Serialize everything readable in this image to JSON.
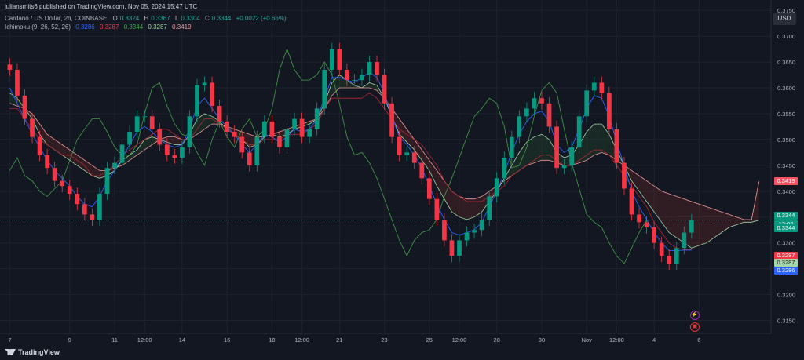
{
  "header": {
    "published": "juliansmits6 published on TradingView.com, Nov 05, 2024 15:47 UTC",
    "symbol": "Cardano / US Dollar, 2h, COINBASE",
    "ohlc": {
      "o_label": "O",
      "o": "0.3324",
      "h_label": "H",
      "h": "0.3367",
      "l_label": "L",
      "l": "0.3304",
      "c_label": "C",
      "c": "0.3344",
      "change": "+0.0022 (+0.66%)"
    },
    "ichimoku": {
      "name": "Ichimoku (9, 26, 52, 26)",
      "v1": "0.3286",
      "v2": "0.3287",
      "v3": "0.3344",
      "v4": "0.3287",
      "v5": "0.3419"
    }
  },
  "currency_button": "USD",
  "branding": "TradingView",
  "price_tags": [
    {
      "text": "0.3419",
      "color": "#f7525f",
      "price": 0.3419
    },
    {
      "text": "0.3344",
      "color": "#089981",
      "price": 0.3352
    },
    {
      "text": "12:03",
      "color": "#089981",
      "price": 0.33365
    },
    {
      "text": "0.3344",
      "color": "#089981",
      "price": 0.3328
    },
    {
      "text": "0.3287",
      "color": "#f23645",
      "price": 0.3276
    },
    {
      "text": "0.3287",
      "color": "#a5d6a7",
      "price": 0.3262
    },
    {
      "text": "0.3286",
      "color": "#2962ff",
      "price": 0.3247
    }
  ],
  "events": [
    {
      "name": "lightning-event-icon",
      "glyph": "⚡",
      "color": "#9c27b0",
      "x_index": 91.3,
      "price": 0.3162
    },
    {
      "name": "calendar-event-icon",
      "glyph": "▣",
      "color": "#e53935",
      "x_index": 91.3,
      "price": 0.3139
    }
  ],
  "colors": {
    "bg": "#131722",
    "up": "#089981",
    "down": "#f23645",
    "tenkan": "#2962ff",
    "kijun": "#b22833",
    "lagging": "#43a047",
    "spanA": "#a5d6a7",
    "spanB": "#ef9a9a",
    "grid": "#1e222d"
  },
  "chart_data": {
    "type": "candlestick",
    "symbol": "Cardano / US Dollar",
    "interval": "2h",
    "exchange": "COINBASE",
    "y_axis": {
      "ticks": [
        0.315,
        0.32,
        0.325,
        0.33,
        0.335,
        0.34,
        0.345,
        0.35,
        0.355,
        0.36,
        0.365,
        0.37,
        0.375
      ],
      "range": [
        0.3125,
        0.377
      ]
    },
    "x_ticks": [
      {
        "label": "7",
        "i": 0
      },
      {
        "label": "9",
        "i": 8
      },
      {
        "label": "11",
        "i": 14
      },
      {
        "label": "12:00",
        "i": 18
      },
      {
        "label": "14",
        "i": 23
      },
      {
        "label": "16",
        "i": 29
      },
      {
        "label": "18",
        "i": 35
      },
      {
        "label": "12:00",
        "i": 39
      },
      {
        "label": "21",
        "i": 44
      },
      {
        "label": "23",
        "i": 50
      },
      {
        "label": "25",
        "i": 56
      },
      {
        "label": "12:00",
        "i": 60
      },
      {
        "label": "28",
        "i": 65
      },
      {
        "label": "30",
        "i": 71
      },
      {
        "label": "Nov",
        "i": 77
      },
      {
        "label": "12:00",
        "i": 81
      },
      {
        "label": "4",
        "i": 86
      },
      {
        "label": "6",
        "i": 92
      }
    ],
    "x_range": [
      -1.3,
      101.6
    ],
    "last_price": 0.3344,
    "close": [
      0.3635,
      0.3585,
      0.354,
      0.3505,
      0.347,
      0.3445,
      0.342,
      0.341,
      0.3395,
      0.3375,
      0.3355,
      0.3345,
      0.3395,
      0.3445,
      0.3455,
      0.349,
      0.3515,
      0.3545,
      0.3545,
      0.352,
      0.349,
      0.347,
      0.3465,
      0.3485,
      0.3545,
      0.3605,
      0.361,
      0.3565,
      0.3535,
      0.3515,
      0.3505,
      0.3475,
      0.345,
      0.3505,
      0.3535,
      0.3505,
      0.3485,
      0.352,
      0.354,
      0.3505,
      0.352,
      0.356,
      0.3635,
      0.3675,
      0.3635,
      0.3615,
      0.3615,
      0.3625,
      0.365,
      0.3625,
      0.357,
      0.3505,
      0.347,
      0.3475,
      0.3455,
      0.3425,
      0.3385,
      0.3345,
      0.3305,
      0.3275,
      0.3305,
      0.332,
      0.3325,
      0.3345,
      0.339,
      0.3425,
      0.3465,
      0.3505,
      0.3545,
      0.356,
      0.358,
      0.357,
      0.3525,
      0.3445,
      0.345,
      0.3485,
      0.3545,
      0.3595,
      0.361,
      0.359,
      0.352,
      0.3455,
      0.3405,
      0.3355,
      0.334,
      0.333,
      0.33,
      0.3275,
      0.326,
      0.329,
      0.332,
      0.3344
    ],
    "tenkan": [
      0.36,
      0.357,
      0.354,
      0.351,
      0.3485,
      0.346,
      0.344,
      0.3425,
      0.341,
      0.339,
      0.3375,
      0.337,
      0.339,
      0.342,
      0.344,
      0.3465,
      0.349,
      0.3515,
      0.3525,
      0.3515,
      0.35,
      0.349,
      0.3485,
      0.349,
      0.352,
      0.3565,
      0.358,
      0.356,
      0.354,
      0.3525,
      0.351,
      0.349,
      0.3475,
      0.349,
      0.351,
      0.3505,
      0.3495,
      0.3505,
      0.352,
      0.3515,
      0.352,
      0.354,
      0.358,
      0.362,
      0.362,
      0.3615,
      0.361,
      0.362,
      0.363,
      0.362,
      0.359,
      0.3545,
      0.3505,
      0.349,
      0.347,
      0.3445,
      0.341,
      0.3375,
      0.3345,
      0.332,
      0.3315,
      0.332,
      0.3325,
      0.334,
      0.337,
      0.34,
      0.3435,
      0.3475,
      0.351,
      0.3535,
      0.355,
      0.3555,
      0.3535,
      0.349,
      0.3475,
      0.3485,
      0.352,
      0.356,
      0.3585,
      0.358,
      0.3545,
      0.3495,
      0.345,
      0.34,
      0.337,
      0.3345,
      0.332,
      0.33,
      0.3285,
      0.3285,
      0.3286,
      0.3286
    ],
    "kijun": [
      0.356,
      0.356,
      0.354,
      0.352,
      0.35,
      0.349,
      0.348,
      0.347,
      0.347,
      0.346,
      0.345,
      0.343,
      0.343,
      0.344,
      0.345,
      0.347,
      0.348,
      0.349,
      0.35,
      0.351,
      0.352,
      0.352,
      0.351,
      0.35,
      0.35,
      0.352,
      0.354,
      0.354,
      0.353,
      0.352,
      0.351,
      0.35,
      0.349,
      0.349,
      0.35,
      0.35,
      0.35,
      0.351,
      0.351,
      0.351,
      0.352,
      0.353,
      0.356,
      0.358,
      0.358,
      0.358,
      0.358,
      0.358,
      0.359,
      0.358,
      0.356,
      0.354,
      0.352,
      0.351,
      0.35,
      0.349,
      0.347,
      0.345,
      0.342,
      0.34,
      0.339,
      0.338,
      0.338,
      0.338,
      0.339,
      0.34,
      0.341,
      0.343,
      0.344,
      0.345,
      0.346,
      0.347,
      0.347,
      0.346,
      0.345,
      0.345,
      0.346,
      0.347,
      0.348,
      0.348,
      0.347,
      0.345,
      0.343,
      0.341,
      0.339,
      0.337,
      0.334,
      0.332,
      0.33,
      0.329,
      0.3287,
      0.3287
    ],
    "lagging": [
      0.344,
      0.3465,
      0.343,
      0.342,
      0.34,
      0.339,
      0.3405,
      0.342,
      0.346,
      0.35,
      0.352,
      0.354,
      0.354,
      0.3515,
      0.3485,
      0.347,
      0.347,
      0.349,
      0.355,
      0.36,
      0.361,
      0.3565,
      0.353,
      0.351,
      0.3505,
      0.3475,
      0.345,
      0.35,
      0.3535,
      0.3505,
      0.3485,
      0.352,
      0.354,
      0.3505,
      0.352,
      0.356,
      0.3635,
      0.3675,
      0.3635,
      0.3615,
      0.3615,
      0.3625,
      0.365,
      0.3625,
      0.357,
      0.3505,
      0.347,
      0.3475,
      0.3455,
      0.3425,
      0.3385,
      0.3345,
      0.3305,
      0.3275,
      0.3305,
      0.332,
      0.3325,
      0.3345,
      0.339,
      0.3425,
      0.3465,
      0.3505,
      0.3545,
      0.356,
      0.358,
      0.357,
      0.3525,
      0.3445,
      0.345,
      0.3485,
      0.3545,
      0.3595,
      0.361,
      0.359,
      0.352,
      0.3455,
      0.3405,
      0.3355,
      0.334,
      0.333,
      0.33,
      0.3275,
      0.326,
      0.329,
      0.332,
      0.3344
    ],
    "span_a": [
      0.359,
      0.358,
      0.356,
      0.354,
      0.351,
      0.349,
      0.348,
      0.347,
      0.346,
      0.345,
      0.344,
      0.343,
      0.3425,
      0.343,
      0.344,
      0.346,
      0.347,
      0.348,
      0.35,
      0.3505,
      0.35,
      0.3495,
      0.349,
      0.349,
      0.351,
      0.354,
      0.355,
      0.3545,
      0.3535,
      0.352,
      0.351,
      0.35,
      0.3485,
      0.349,
      0.3505,
      0.351,
      0.3505,
      0.351,
      0.352,
      0.3525,
      0.353,
      0.354,
      0.357,
      0.361,
      0.3625,
      0.3615,
      0.3605,
      0.36,
      0.361,
      0.3605,
      0.358,
      0.3545,
      0.351,
      0.3495,
      0.348,
      0.346,
      0.344,
      0.341,
      0.3385,
      0.336,
      0.335,
      0.3345,
      0.335,
      0.336,
      0.338,
      0.34,
      0.3425,
      0.345,
      0.3475,
      0.3495,
      0.3505,
      0.351,
      0.35,
      0.3475,
      0.3465,
      0.347,
      0.349,
      0.3515,
      0.353,
      0.353,
      0.351,
      0.348,
      0.345,
      0.342,
      0.34,
      0.338,
      0.336,
      0.334,
      0.332,
      0.331,
      0.33,
      0.329,
      0.3295,
      0.33,
      0.331,
      0.332,
      0.333,
      0.3335,
      0.334,
      0.334,
      0.3344
    ],
    "span_b": [
      0.357,
      0.3565,
      0.356,
      0.355,
      0.353,
      0.351,
      0.35,
      0.349,
      0.348,
      0.347,
      0.346,
      0.345,
      0.344,
      0.344,
      0.3445,
      0.345,
      0.346,
      0.347,
      0.348,
      0.349,
      0.35,
      0.3505,
      0.3505,
      0.35,
      0.35,
      0.351,
      0.352,
      0.353,
      0.353,
      0.3525,
      0.352,
      0.3515,
      0.351,
      0.3505,
      0.3505,
      0.351,
      0.3515,
      0.352,
      0.3525,
      0.353,
      0.3535,
      0.354,
      0.356,
      0.3585,
      0.36,
      0.36,
      0.36,
      0.36,
      0.36,
      0.3595,
      0.358,
      0.356,
      0.354,
      0.352,
      0.35,
      0.348,
      0.346,
      0.344,
      0.342,
      0.34,
      0.339,
      0.3385,
      0.3385,
      0.339,
      0.34,
      0.341,
      0.342,
      0.343,
      0.344,
      0.345,
      0.3455,
      0.346,
      0.346,
      0.3455,
      0.345,
      0.345,
      0.3455,
      0.346,
      0.347,
      0.3475,
      0.347,
      0.346,
      0.345,
      0.344,
      0.343,
      0.342,
      0.341,
      0.34,
      0.3395,
      0.339,
      0.3385,
      0.338,
      0.3375,
      0.337,
      0.3365,
      0.336,
      0.3355,
      0.335,
      0.3345,
      0.3345,
      0.3419
    ]
  }
}
